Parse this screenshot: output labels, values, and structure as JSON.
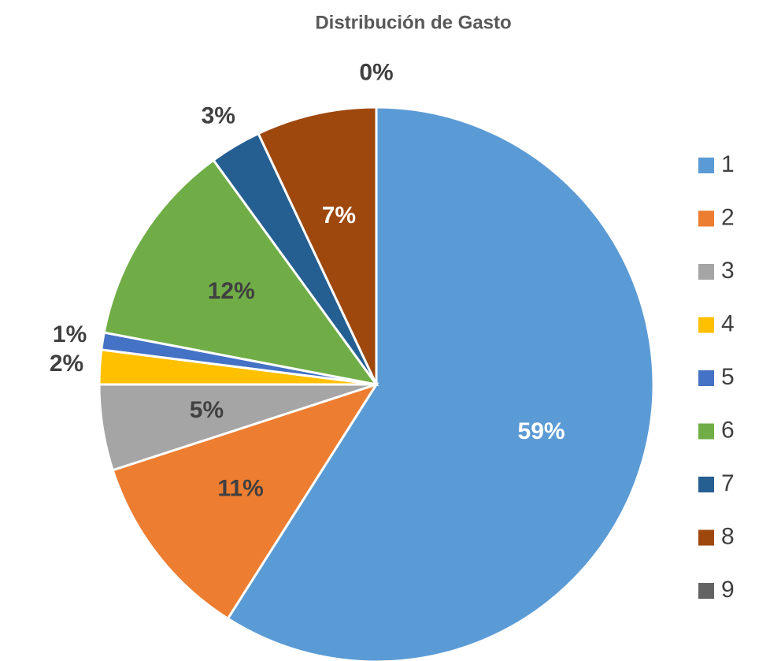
{
  "chart_data": {
    "type": "pie",
    "title": "Distribución de Gasto",
    "categories": [
      "1",
      "2",
      "3",
      "4",
      "5",
      "6",
      "7",
      "8",
      "9"
    ],
    "values": [
      59,
      11,
      5,
      2,
      1,
      12,
      3,
      7,
      0
    ],
    "value_labels": [
      "59%",
      "11%",
      "5%",
      "2%",
      "1%",
      "12%",
      "3%",
      "7%",
      "0%"
    ],
    "colors": [
      "#5b9bd5",
      "#ed7d31",
      "#a5a5a5",
      "#ffc000",
      "#4472c4",
      "#70ad47",
      "#255e91",
      "#9e480e",
      "#636363"
    ],
    "label_colors": [
      "#ffffff",
      "#404040",
      "#404040",
      "#404040",
      "#404040",
      "#404040",
      "#404040",
      "#ffffff",
      "#404040"
    ],
    "legend": "right"
  }
}
